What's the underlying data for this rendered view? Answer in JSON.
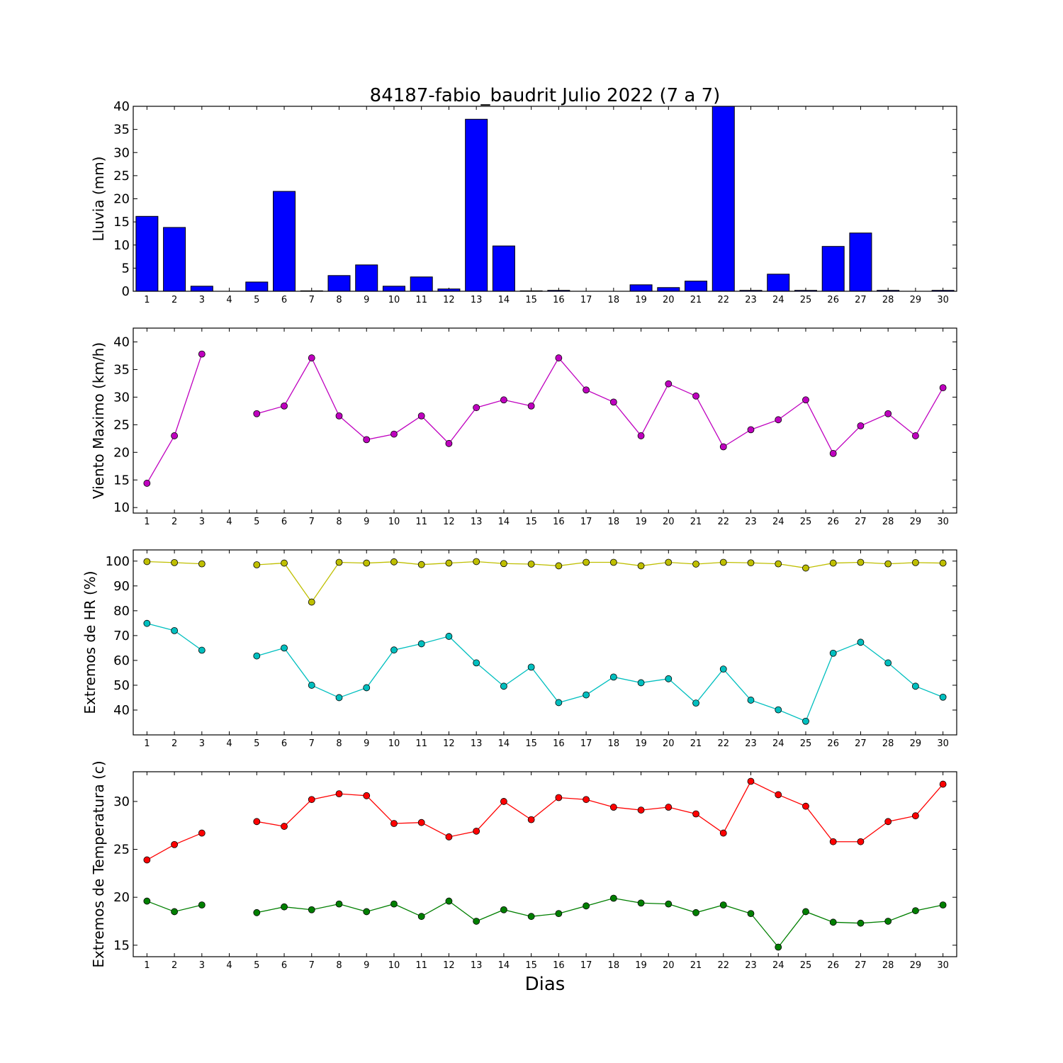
{
  "title": "84187-fabio_baudrit Julio 2022  (7 a 7)",
  "xlabel": "Dias",
  "chart_data": [
    {
      "type": "bar",
      "ylabel": "Lluvia (mm)",
      "ylim": [
        0,
        40
      ],
      "yticks": [
        0,
        5,
        10,
        15,
        20,
        25,
        30,
        35,
        40
      ],
      "categories": [
        1,
        2,
        3,
        4,
        5,
        6,
        7,
        8,
        9,
        10,
        11,
        12,
        13,
        14,
        15,
        16,
        17,
        18,
        19,
        20,
        21,
        22,
        23,
        24,
        25,
        26,
        27,
        28,
        29,
        30
      ],
      "series": [
        {
          "color": "#0000ff",
          "values": [
            16.2,
            13.8,
            1.1,
            null,
            2.0,
            21.6,
            0.1,
            3.4,
            5.7,
            1.1,
            3.1,
            0.5,
            37.2,
            9.8,
            0.1,
            0.2,
            0,
            0,
            1.4,
            0.8,
            2.2,
            40,
            0.2,
            3.7,
            0.2,
            9.7,
            12.6,
            0.2,
            0,
            0.2
          ]
        }
      ]
    },
    {
      "type": "line",
      "ylabel": "Viento Maximo (km/h)",
      "ylim": [
        9,
        42.5
      ],
      "yticks": [
        10,
        15,
        20,
        25,
        30,
        35,
        40
      ],
      "categories": [
        1,
        2,
        3,
        4,
        5,
        6,
        7,
        8,
        9,
        10,
        11,
        12,
        13,
        14,
        15,
        16,
        17,
        18,
        19,
        20,
        21,
        22,
        23,
        24,
        25,
        26,
        27,
        28,
        29,
        30
      ],
      "series": [
        {
          "color": "#bf00bf",
          "values": [
            14.4,
            23.0,
            37.8,
            null,
            27.0,
            28.4,
            37.1,
            26.6,
            22.3,
            23.3,
            26.6,
            21.6,
            28.1,
            29.5,
            28.4,
            37.1,
            31.3,
            29.1,
            23.0,
            32.4,
            30.2,
            21.0,
            24.1,
            25.9,
            29.5,
            19.8,
            24.8,
            27.0,
            23.0,
            31.7
          ]
        }
      ]
    },
    {
      "type": "line",
      "ylabel": "Extremos de HR (%)",
      "ylim": [
        30,
        104.5
      ],
      "yticks": [
        40,
        50,
        60,
        70,
        80,
        90,
        100
      ],
      "categories": [
        1,
        2,
        3,
        4,
        5,
        6,
        7,
        8,
        9,
        10,
        11,
        12,
        13,
        14,
        15,
        16,
        17,
        18,
        19,
        20,
        21,
        22,
        23,
        24,
        25,
        26,
        27,
        28,
        29,
        30
      ],
      "series": [
        {
          "color": "#bfbf00",
          "values": [
            99.8,
            99.4,
            98.9,
            null,
            98.5,
            99.2,
            83.5,
            99.5,
            99.2,
            99.7,
            98.6,
            99.2,
            99.8,
            99.0,
            98.8,
            98.1,
            99.5,
            99.5,
            98.1,
            99.5,
            98.8,
            99.5,
            99.3,
            98.9,
            97.2,
            99.2,
            99.5,
            98.9,
            99.4,
            99.2
          ]
        },
        {
          "color": "#00bfbf",
          "values": [
            74.9,
            72.0,
            64.1,
            null,
            61.8,
            65.0,
            50.0,
            45.0,
            49.0,
            64.2,
            66.7,
            69.7,
            59.0,
            49.6,
            57.3,
            43.0,
            46.1,
            53.3,
            51.0,
            52.6,
            42.8,
            56.5,
            44.0,
            40.1,
            35.5,
            62.9,
            67.3,
            59.0,
            49.6,
            45.2
          ]
        }
      ]
    },
    {
      "type": "line",
      "ylabel": "Extremos de Temperatura (c)",
      "ylim": [
        13.8,
        33.1
      ],
      "yticks": [
        15,
        20,
        25,
        30
      ],
      "categories": [
        1,
        2,
        3,
        4,
        5,
        6,
        7,
        8,
        9,
        10,
        11,
        12,
        13,
        14,
        15,
        16,
        17,
        18,
        19,
        20,
        21,
        22,
        23,
        24,
        25,
        26,
        27,
        28,
        29,
        30
      ],
      "series": [
        {
          "color": "#ff0000",
          "values": [
            23.9,
            25.5,
            26.7,
            null,
            27.9,
            27.4,
            30.2,
            30.8,
            30.6,
            27.7,
            27.8,
            26.3,
            26.9,
            30.0,
            28.1,
            30.4,
            30.2,
            29.4,
            29.1,
            29.4,
            28.7,
            26.7,
            32.1,
            30.7,
            29.5,
            25.8,
            25.8,
            27.9,
            28.5,
            31.8
          ]
        },
        {
          "color": "#007f00",
          "values": [
            19.6,
            18.5,
            19.2,
            null,
            18.4,
            19.0,
            18.7,
            19.3,
            18.5,
            19.3,
            18.0,
            19.6,
            17.5,
            18.7,
            18.0,
            18.3,
            19.1,
            19.9,
            19.4,
            19.3,
            18.4,
            19.2,
            18.3,
            14.8,
            18.5,
            17.4,
            17.3,
            17.5,
            18.6,
            19.2
          ]
        }
      ]
    }
  ]
}
